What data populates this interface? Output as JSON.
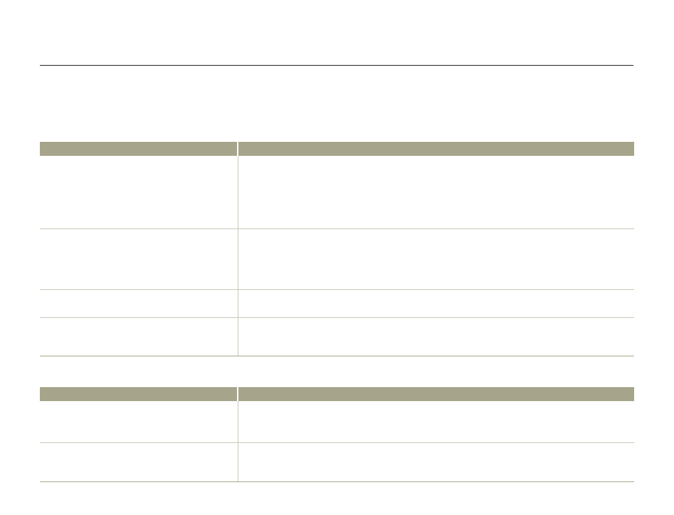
{
  "document": {
    "tables": [
      {
        "rows": 4
      },
      {
        "rows": 2
      }
    ],
    "colors": {
      "header": "#a6a48a",
      "divider": "#c9c7b6",
      "rule": "#231f20"
    }
  }
}
